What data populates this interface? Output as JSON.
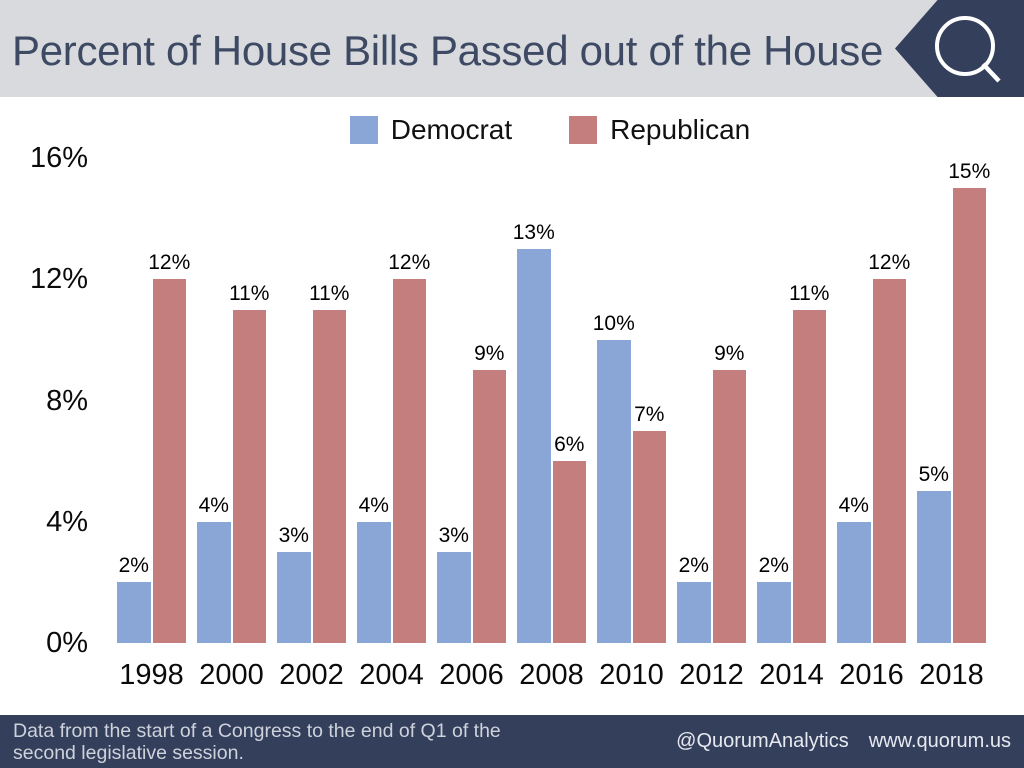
{
  "header": {
    "title": "Percent of House Bills Passed out of the House"
  },
  "logo": {
    "icon": "quorum-q-icon"
  },
  "chart_data": {
    "type": "bar",
    "title": "Percent of House Bills Passed out of the House",
    "categories": [
      "1998",
      "2000",
      "2002",
      "2004",
      "2006",
      "2008",
      "2010",
      "2012",
      "2014",
      "2016",
      "2018"
    ],
    "series": [
      {
        "name": "Democrat",
        "color": "#8aa6d6",
        "values": [
          2,
          4,
          3,
          4,
          3,
          13,
          10,
          2,
          2,
          4,
          5
        ]
      },
      {
        "name": "Republican",
        "color": "#c47e7d",
        "values": [
          12,
          11,
          11,
          12,
          9,
          6,
          7,
          9,
          11,
          12,
          15
        ]
      }
    ],
    "ylim": [
      0,
      16
    ],
    "yticks": [
      0,
      4,
      8,
      12,
      16
    ],
    "ytick_suffix": "%",
    "value_label_suffix": "%",
    "legend_position": "top",
    "grid": false
  },
  "footer": {
    "note_line1": "Data from the start of a Congress to the end of Q1 of the",
    "note_line2": "second legislative session.",
    "handle": "@QuorumAnalytics",
    "website": "www.quorum.us"
  },
  "colors": {
    "header_bg": "#d8dade",
    "title_text": "#3e4a63",
    "navy": "#343f5c",
    "democrat": "#8aa6d6",
    "republican": "#c47e7d"
  }
}
